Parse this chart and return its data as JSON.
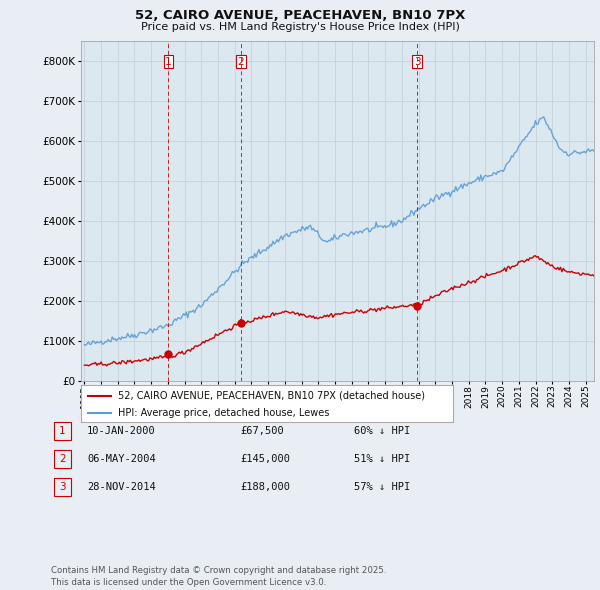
{
  "title_line1": "52, CAIRO AVENUE, PEACEHAVEN, BN10 7PX",
  "title_line2": "Price paid vs. HM Land Registry's House Price Index (HPI)",
  "ytick_values": [
    0,
    100000,
    200000,
    300000,
    400000,
    500000,
    600000,
    700000,
    800000
  ],
  "ylim": [
    0,
    850000
  ],
  "background_color": "#e8eef4",
  "plot_bg_color": "#dce8f0",
  "grid_color": "#c0cdd8",
  "hpi_color": "#5b9bd5",
  "price_color": "#cc0000",
  "vline_color": "#cc0000",
  "transactions": [
    {
      "date_num": 2000.03,
      "price": 67500,
      "label": "1"
    },
    {
      "date_num": 2004.36,
      "price": 145000,
      "label": "2"
    },
    {
      "date_num": 2014.91,
      "price": 188000,
      "label": "3"
    }
  ],
  "legend_entries": [
    "52, CAIRO AVENUE, PEACEHAVEN, BN10 7PX (detached house)",
    "HPI: Average price, detached house, Lewes"
  ],
  "table_rows": [
    {
      "num": "1",
      "date": "10-JAN-2000",
      "price": "£67,500",
      "pct": "60% ↓ HPI"
    },
    {
      "num": "2",
      "date": "06-MAY-2004",
      "price": "£145,000",
      "pct": "51% ↓ HPI"
    },
    {
      "num": "3",
      "date": "28-NOV-2014",
      "price": "£188,000",
      "pct": "57% ↓ HPI"
    }
  ],
  "footnote": "Contains HM Land Registry data © Crown copyright and database right 2025.\nThis data is licensed under the Open Government Licence v3.0.",
  "xmin": 1994.8,
  "xmax": 2025.5
}
